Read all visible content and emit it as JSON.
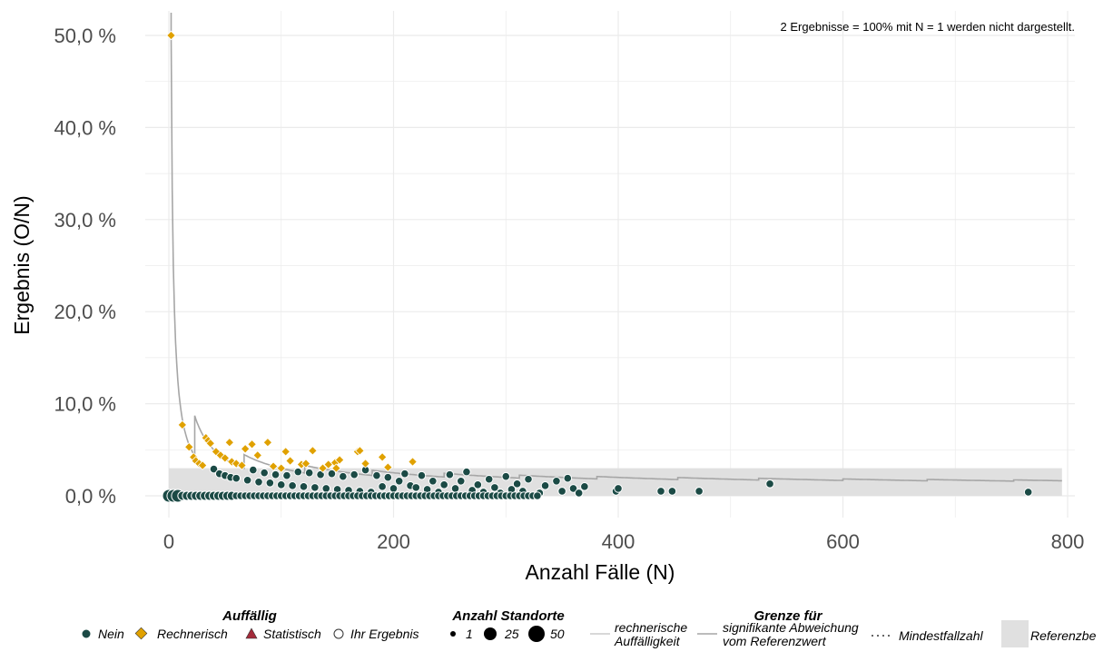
{
  "chart_data": {
    "type": "scatter",
    "note": "2 Ergebnisse = 100% mit N = 1 werden nicht dargestellt.",
    "xlabel": "Anzahl Fälle (N)",
    "ylabel": "Ergebnis (O/N)",
    "xlim": [
      -25,
      800
    ],
    "ylim": [
      -2,
      52
    ],
    "x_ticks": [
      0,
      200,
      400,
      600,
      800
    ],
    "x_tick_labels": [
      "0",
      "200",
      "400",
      "600",
      "800"
    ],
    "y_ticks": [
      0,
      10,
      20,
      30,
      40,
      50
    ],
    "y_tick_labels": [
      "0,0 %",
      "10,0 %",
      "20,0 %",
      "30,0 %",
      "40,0 %",
      "50,0 %"
    ],
    "grid": true,
    "reference_band": {
      "x": [
        0,
        795
      ],
      "y": [
        0,
        3.0
      ]
    },
    "significance_curve": {
      "p0": 0.01,
      "z": 1.645,
      "x_start": 2,
      "x_end": 795
    },
    "colors": {
      "nein": "#1b4a45",
      "rechnerisch": "#e0a100",
      "statistisch": "#a32a3a",
      "curve": "#a6a6a6",
      "band": "#e0e0e0",
      "grid": "#ebebeb"
    },
    "series": [
      {
        "name": "Rechnerisch",
        "marker": "diamond",
        "points": [
          [
            2,
            50.0
          ],
          [
            12,
            7.7
          ],
          [
            18,
            5.3
          ],
          [
            22,
            4.2
          ],
          [
            24,
            3.8
          ],
          [
            27,
            3.5
          ],
          [
            30,
            3.3
          ],
          [
            33,
            6.3
          ],
          [
            35,
            6.0
          ],
          [
            37,
            5.7
          ],
          [
            42,
            4.8
          ],
          [
            46,
            4.4
          ],
          [
            50,
            4.1
          ],
          [
            54,
            5.8
          ],
          [
            56,
            3.7
          ],
          [
            60,
            3.5
          ],
          [
            65,
            3.3
          ],
          [
            68,
            5.1
          ],
          [
            74,
            5.6
          ],
          [
            79,
            4.4
          ],
          [
            88,
            5.8
          ],
          [
            93,
            3.2
          ],
          [
            100,
            3.0
          ],
          [
            104,
            4.8
          ],
          [
            108,
            3.8
          ],
          [
            118,
            3.4
          ],
          [
            122,
            3.5
          ],
          [
            128,
            4.9
          ],
          [
            137,
            3.0
          ],
          [
            142,
            3.4
          ],
          [
            148,
            3.6
          ],
          [
            149,
            3.0
          ],
          [
            152,
            3.9
          ],
          [
            168,
            4.8
          ],
          [
            170,
            4.9
          ],
          [
            175,
            3.5
          ],
          [
            190,
            4.2
          ],
          [
            195,
            3.1
          ],
          [
            217,
            3.7
          ]
        ]
      },
      {
        "name": "Nein",
        "marker": "circle",
        "points_summary": "dense band along 0 % for N 0–370 plus points up to ~3 %",
        "points": [
          [
            40,
            2.9
          ],
          [
            45,
            2.4
          ],
          [
            50,
            2.2
          ],
          [
            55,
            2.0
          ],
          [
            60,
            1.9
          ],
          [
            70,
            1.7
          ],
          [
            75,
            2.8
          ],
          [
            80,
            1.5
          ],
          [
            85,
            2.5
          ],
          [
            90,
            1.4
          ],
          [
            95,
            2.3
          ],
          [
            100,
            1.2
          ],
          [
            105,
            2.2
          ],
          [
            110,
            1.1
          ],
          [
            115,
            2.6
          ],
          [
            120,
            1.0
          ],
          [
            125,
            2.5
          ],
          [
            130,
            0.9
          ],
          [
            135,
            2.3
          ],
          [
            140,
            0.8
          ],
          [
            145,
            2.4
          ],
          [
            150,
            0.7
          ],
          [
            155,
            2.1
          ],
          [
            160,
            0.6
          ],
          [
            165,
            2.3
          ],
          [
            170,
            0.5
          ],
          [
            175,
            2.8
          ],
          [
            180,
            0.4
          ],
          [
            185,
            2.2
          ],
          [
            190,
            1.0
          ],
          [
            195,
            2.0
          ],
          [
            200,
            0.8
          ],
          [
            205,
            1.6
          ],
          [
            210,
            2.4
          ],
          [
            215,
            1.1
          ],
          [
            220,
            0.9
          ],
          [
            225,
            2.2
          ],
          [
            230,
            0.7
          ],
          [
            235,
            1.6
          ],
          [
            240,
            0.4
          ],
          [
            245,
            1.2
          ],
          [
            250,
            2.3
          ],
          [
            255,
            0.8
          ],
          [
            260,
            1.6
          ],
          [
            265,
            2.6
          ],
          [
            270,
            0.6
          ],
          [
            275,
            1.2
          ],
          [
            280,
            0.4
          ],
          [
            285,
            1.8
          ],
          [
            290,
            0.9
          ],
          [
            295,
            0.3
          ],
          [
            300,
            2.1
          ],
          [
            305,
            0.7
          ],
          [
            310,
            1.3
          ],
          [
            315,
            0.5
          ],
          [
            320,
            1.8
          ],
          [
            330,
            0.3
          ],
          [
            335,
            1.1
          ],
          [
            345,
            1.6
          ],
          [
            350,
            0.5
          ],
          [
            355,
            1.9
          ],
          [
            360,
            0.8
          ],
          [
            365,
            0.3
          ],
          [
            370,
            1.0
          ],
          [
            398,
            0.5
          ],
          [
            400,
            0.8
          ],
          [
            438,
            0.5
          ],
          [
            448,
            0.5
          ],
          [
            472,
            0.5
          ],
          [
            535,
            1.3
          ],
          [
            765,
            0.4
          ]
        ]
      },
      {
        "name": "Ihr Ergebnis",
        "marker": "hollow-circle",
        "points": []
      }
    ],
    "legend": {
      "placement": "bottom",
      "groups": [
        {
          "title": "Auffällig",
          "items": [
            "Nein",
            "Rechnerisch",
            "Statistisch",
            "Ihr Ergebnis"
          ]
        },
        {
          "title": "Anzahl Standorte",
          "items": [
            "1",
            "25",
            "50"
          ]
        },
        {
          "title": "Grenze für",
          "items": [
            "rechnerische",
            "Auffälligkeit",
            "signifikante Abweichung",
            "vom Referenzwert",
            "Mindestfallzahl",
            "Referenzbe"
          ]
        }
      ]
    }
  }
}
